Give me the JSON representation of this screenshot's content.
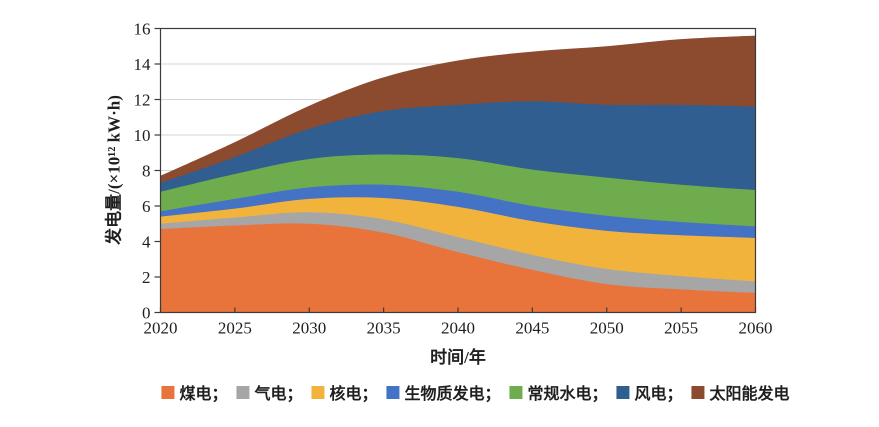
{
  "chart_data": {
    "type": "area",
    "stacked": true,
    "title": "",
    "xlabel": "时间/年",
    "ylabel": "发电量/(×10¹² kW·h)",
    "x": [
      2020,
      2025,
      2030,
      2035,
      2040,
      2045,
      2050,
      2055,
      2060
    ],
    "xlim": [
      2020,
      2060
    ],
    "ylim": [
      0,
      16
    ],
    "ytick_step": 2,
    "yticks": [
      0,
      2,
      4,
      6,
      8,
      10,
      12,
      14,
      16
    ],
    "grid": true,
    "legend_position": "bottom",
    "grid_color": "#D6D6D6",
    "frame_color": "#3B3B3B",
    "series": [
      {
        "name": "煤电",
        "color": "#E8743C",
        "values": [
          4.7,
          4.9,
          5.0,
          4.5,
          3.4,
          2.4,
          1.6,
          1.3,
          1.1
        ]
      },
      {
        "name": "气电",
        "color": "#A6A6A6",
        "values": [
          0.3,
          0.45,
          0.65,
          0.75,
          0.85,
          0.85,
          0.85,
          0.75,
          0.65
        ]
      },
      {
        "name": "核电",
        "color": "#F2B33C",
        "values": [
          0.4,
          0.5,
          0.75,
          1.2,
          1.7,
          1.9,
          2.15,
          2.3,
          2.45
        ]
      },
      {
        "name": "生物质发电",
        "color": "#4472C4",
        "values": [
          0.3,
          0.55,
          0.65,
          0.75,
          0.85,
          0.85,
          0.85,
          0.75,
          0.65
        ]
      },
      {
        "name": "常规水电",
        "color": "#6FAC4D",
        "values": [
          1.1,
          1.4,
          1.6,
          1.7,
          1.9,
          2.05,
          2.15,
          2.1,
          2.05
        ]
      },
      {
        "name": "风电",
        "color": "#305E90",
        "values": [
          0.5,
          0.95,
          1.7,
          2.45,
          3.0,
          3.85,
          4.1,
          4.5,
          4.7
        ]
      },
      {
        "name": "太阳能发电",
        "color": "#8C4A2F",
        "values": [
          0.4,
          0.85,
          1.3,
          1.9,
          2.5,
          2.8,
          3.3,
          3.7,
          4.0
        ]
      }
    ]
  },
  "legend": {
    "separator": "；"
  }
}
